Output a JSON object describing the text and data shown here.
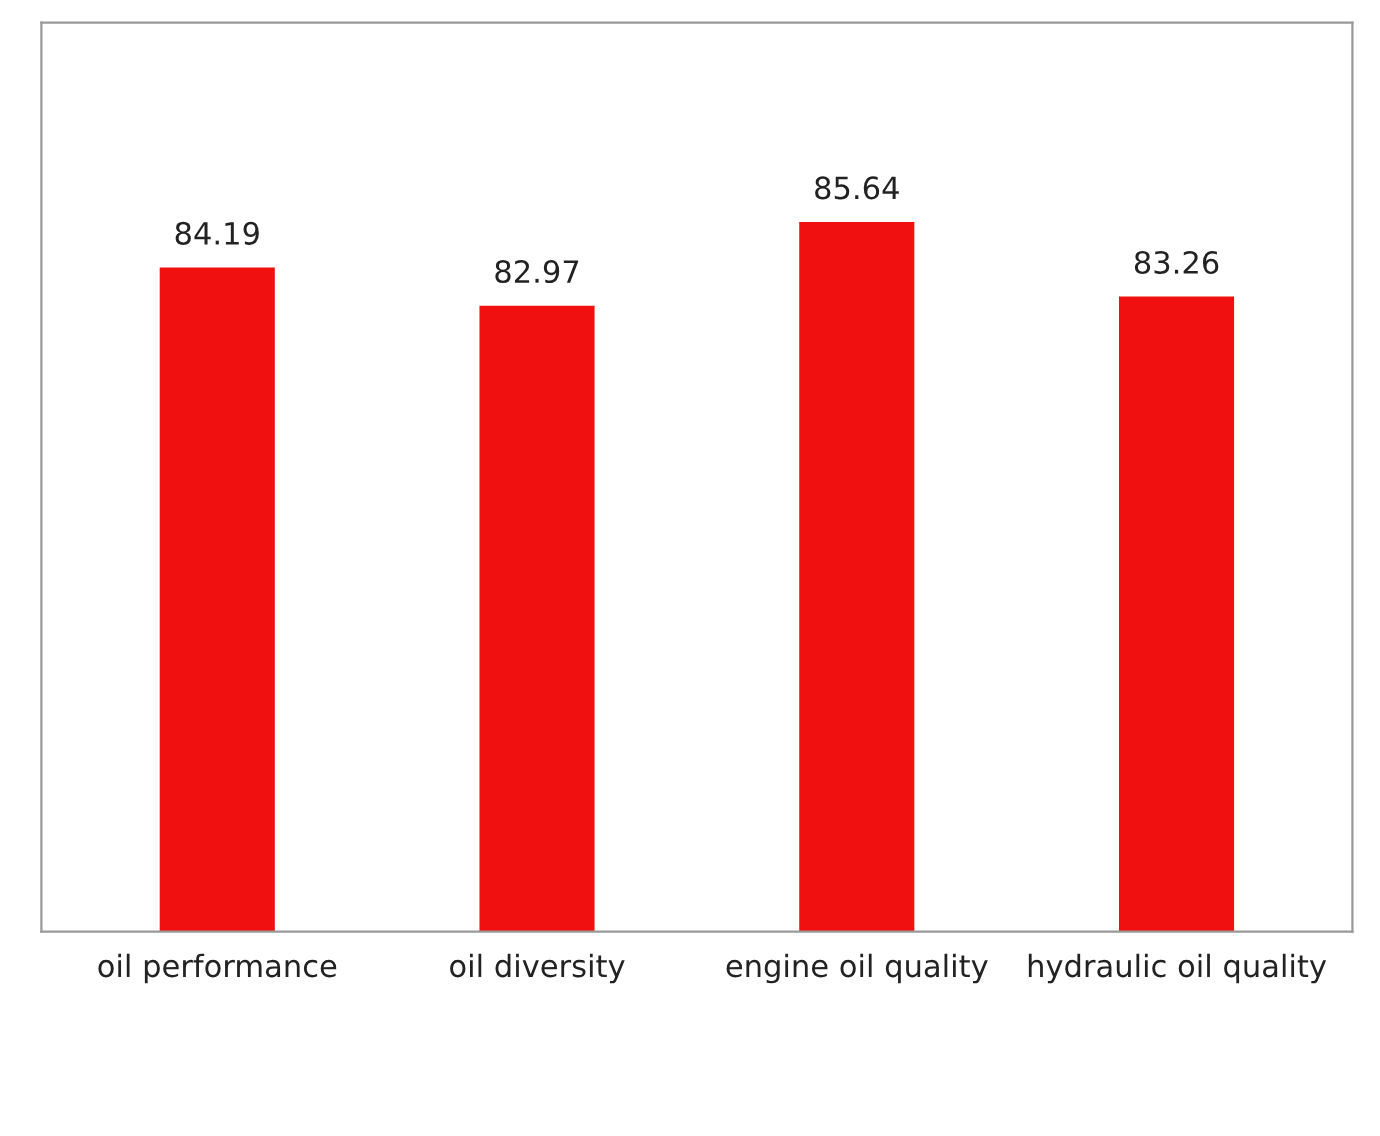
{
  "chart_data": {
    "type": "bar",
    "categories": [
      "oil performance",
      "oil diversity",
      "engine oil quality",
      "hydraulic oil quality"
    ],
    "values": [
      84.19,
      82.97,
      85.64,
      83.26
    ],
    "color": "#f01010",
    "ylim": [
      63,
      92
    ],
    "data_labels": true,
    "grid": false,
    "legend": false
  }
}
